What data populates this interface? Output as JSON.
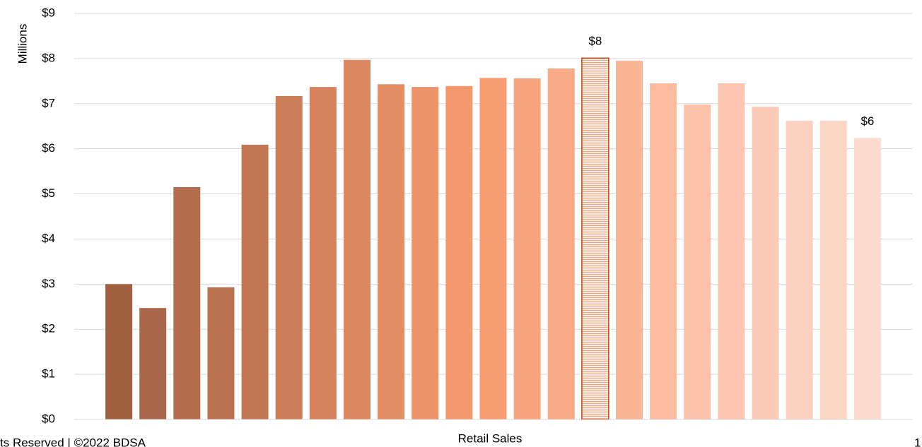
{
  "chart_data": {
    "type": "bar",
    "ylabel": "Millions",
    "xlabel": "Retail Sales",
    "categories": [
      null,
      null,
      null,
      null,
      null,
      null,
      null,
      null,
      null,
      null,
      null,
      null,
      null,
      null,
      null,
      null,
      null,
      null,
      null,
      null,
      null,
      null,
      null
    ],
    "values": [
      3.0,
      2.47,
      5.15,
      2.93,
      6.09,
      7.17,
      7.37,
      7.97,
      7.43,
      7.37,
      7.39,
      7.57,
      7.56,
      7.78,
      8.01,
      7.95,
      7.45,
      6.98,
      7.45,
      6.93,
      6.62,
      6.62,
      6.24
    ],
    "value_labels": [
      null,
      null,
      null,
      null,
      null,
      null,
      null,
      null,
      null,
      null,
      null,
      null,
      null,
      null,
      "$8",
      null,
      null,
      null,
      null,
      null,
      null,
      null,
      "$6"
    ],
    "colors": [
      "#a0603f",
      "#a9664a",
      "#b46d4d",
      "#bb7250",
      "#c47755",
      "#cc7e59",
      "#d4835d",
      "#dc8962",
      "#e48e66",
      "#ec936a",
      "#f4996d",
      "#f79d72",
      "#f8a47d",
      "#f9ab87",
      "#f4a27c",
      "#fab595",
      "#fbbba0",
      "#fbc1a9",
      "#fcc6b0",
      "#fccbb7",
      "#fcd0be",
      "#fdd6c6",
      "#fddccf"
    ],
    "highlight": {
      "index": 14,
      "stroke": "#c0440e"
    },
    "ylim": [
      0,
      9
    ],
    "yticks": [
      {
        "value": 0,
        "label": "$0"
      },
      {
        "value": 1,
        "label": "$1"
      },
      {
        "value": 2,
        "label": "$2"
      },
      {
        "value": 3,
        "label": "$3"
      },
      {
        "value": 4,
        "label": "$4"
      },
      {
        "value": 5,
        "label": "$5"
      },
      {
        "value": 6,
        "label": "$6"
      },
      {
        "value": 7,
        "label": "$7"
      },
      {
        "value": 8,
        "label": "$8"
      },
      {
        "value": 9,
        "label": "$9"
      }
    ],
    "grid": true
  },
  "footer": {
    "left": "ts Reserved | ©2022 BDSA",
    "right": "1"
  }
}
